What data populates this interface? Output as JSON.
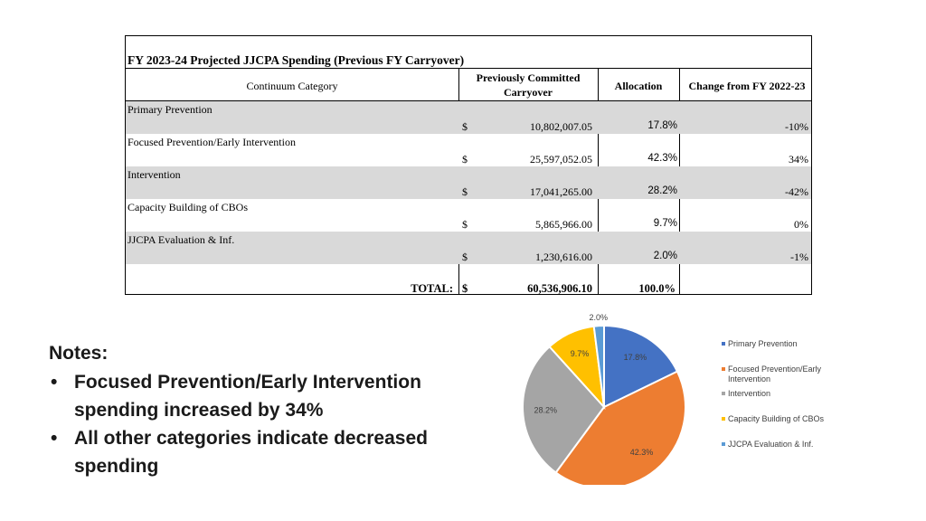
{
  "table": {
    "title": "FY 2023-24 Projected JJCPA Spending (Previous FY Carryover)",
    "headers": {
      "category": "Continuum Category",
      "carryover": "Previously Committed Carryover",
      "allocation": "Allocation",
      "change": "Change from FY 2022-23"
    },
    "rows": [
      {
        "category": "Primary Prevention",
        "dollar": "$",
        "amount": "10,802,007.05",
        "allocation": "17.8%",
        "change": "-10%"
      },
      {
        "category": "Focused Prevention/Early Intervention",
        "dollar": "$",
        "amount": "25,597,052.05",
        "allocation": "42.3%",
        "change": "34%"
      },
      {
        "category": "Intervention",
        "dollar": "$",
        "amount": "17,041,265.00",
        "allocation": "28.2%",
        "change": "-42%"
      },
      {
        "category": "Capacity Building of CBOs",
        "dollar": "$",
        "amount": "5,865,966.00",
        "allocation": "9.7%",
        "change": "0%"
      },
      {
        "category": "JJCPA Evaluation & Inf.",
        "dollar": "$",
        "amount": "1,230,616.00",
        "allocation": "2.0%",
        "change": "-1%"
      }
    ],
    "total": {
      "label": "TOTAL:",
      "dollar": "$",
      "amount": "60,536,906.10",
      "allocation": "100.0%"
    }
  },
  "notes": {
    "title": "Notes:",
    "bullets": [
      "Focused Prevention/Early Intervention spending increased by 34%",
      "All other categories indicate decreased spending"
    ]
  },
  "chart_data": {
    "type": "pie",
    "title": "",
    "legend_position": "right",
    "slices": [
      {
        "label": "Primary Prevention",
        "value": 17.8,
        "display": "17.8%",
        "color": "#4472c4"
      },
      {
        "label": "Focused Prevention/Early Intervention",
        "value": 42.3,
        "display": "42.3%",
        "color": "#ed7d31"
      },
      {
        "label": "Intervention",
        "value": 28.2,
        "display": "28.2%",
        "color": "#a5a5a5"
      },
      {
        "label": "Capacity Building of CBOs",
        "value": 9.7,
        "display": "9.7%",
        "color": "#ffc000"
      },
      {
        "label": "JJCPA Evaluation & Inf.",
        "value": 2.0,
        "display": "2.0%",
        "color": "#5b9bd5"
      }
    ]
  }
}
